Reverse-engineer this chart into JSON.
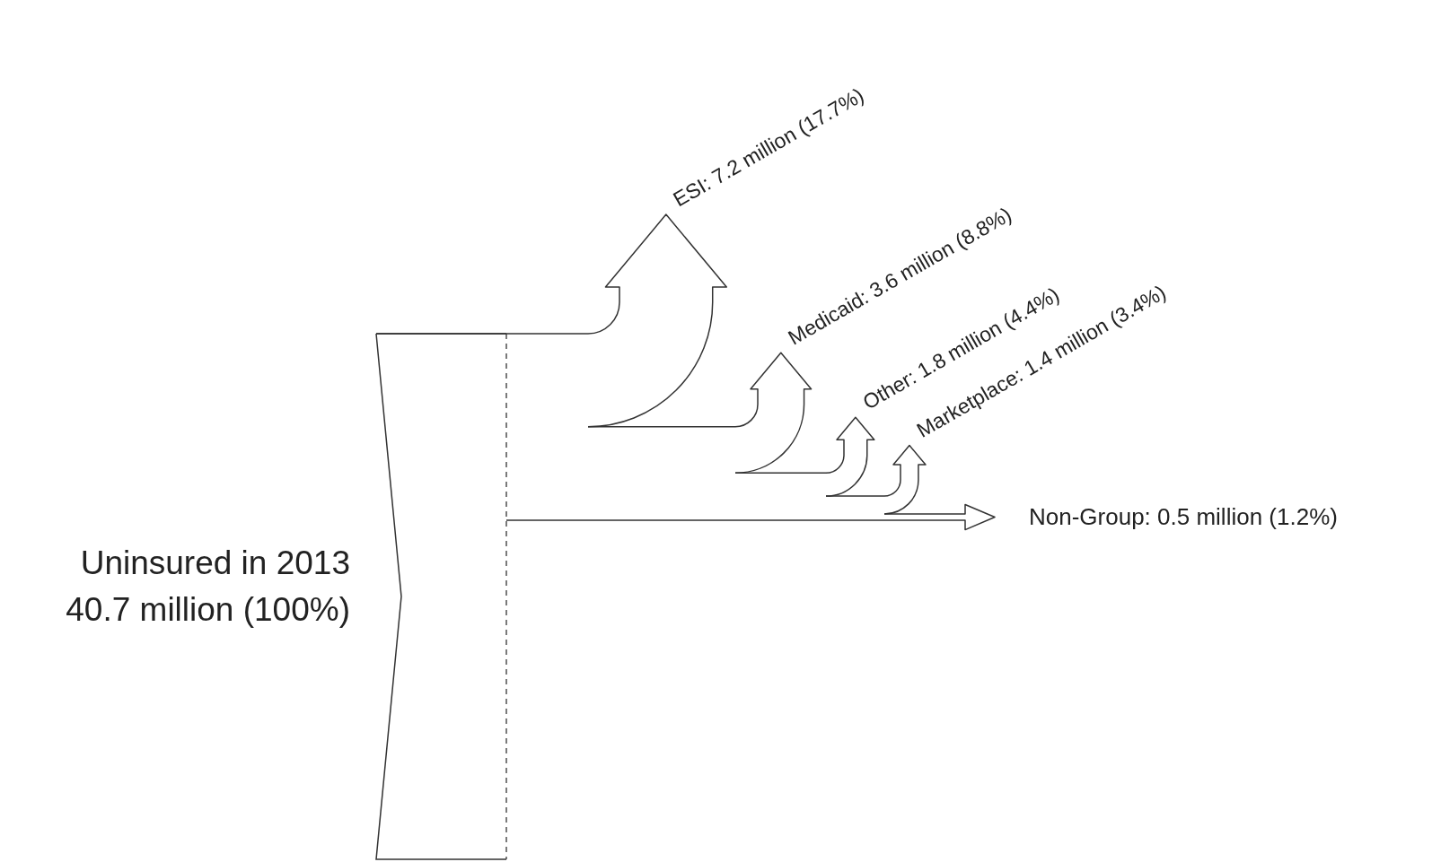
{
  "chart_data": {
    "type": "other",
    "title": "Uninsured in 2013",
    "subtitle": "40.7 million (100%)",
    "values": [
      17.7,
      8.8,
      4.4,
      3.4,
      1.2
    ],
    "value_labels": [
      "ESI: 7.2 million (17.7%)",
      "Medicaid: 3.6 million (8.8%)",
      "Other: 1.8 million (4.4%)",
      "Marketplace: 1.4 million (3.4%)",
      "Non-Group: 0.5 million (1.2%)"
    ]
  }
}
